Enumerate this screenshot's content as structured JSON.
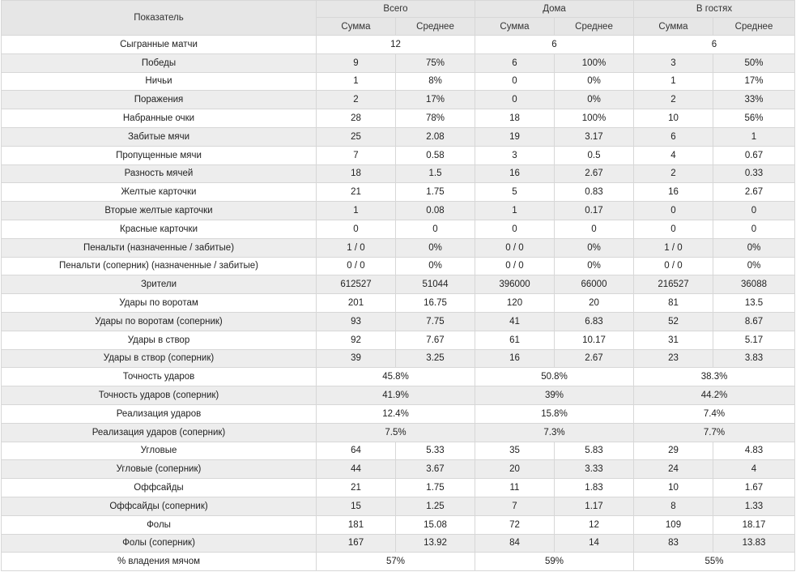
{
  "header": {
    "indicator": "Показатель",
    "groups": [
      "Всего",
      "Дома",
      "В гостях"
    ],
    "sum": "Сумма",
    "avg": "Среднее"
  },
  "rows": [
    {
      "label": "Сыгранные матчи",
      "merged": true,
      "values": [
        "12",
        "6",
        "6"
      ]
    },
    {
      "label": "Победы",
      "values": [
        "9",
        "75%",
        "6",
        "100%",
        "3",
        "50%"
      ]
    },
    {
      "label": "Ничьи",
      "values": [
        "1",
        "8%",
        "0",
        "0%",
        "1",
        "17%"
      ]
    },
    {
      "label": "Поражения",
      "values": [
        "2",
        "17%",
        "0",
        "0%",
        "2",
        "33%"
      ]
    },
    {
      "label": "Набранные очки",
      "values": [
        "28",
        "78%",
        "18",
        "100%",
        "10",
        "56%"
      ]
    },
    {
      "label": "Забитые мячи",
      "values": [
        "25",
        "2.08",
        "19",
        "3.17",
        "6",
        "1"
      ]
    },
    {
      "label": "Пропущенные мячи",
      "values": [
        "7",
        "0.58",
        "3",
        "0.5",
        "4",
        "0.67"
      ]
    },
    {
      "label": "Разность мячей",
      "values": [
        "18",
        "1.5",
        "16",
        "2.67",
        "2",
        "0.33"
      ]
    },
    {
      "label": "Желтые карточки",
      "values": [
        "21",
        "1.75",
        "5",
        "0.83",
        "16",
        "2.67"
      ]
    },
    {
      "label": "Вторые желтые карточки",
      "values": [
        "1",
        "0.08",
        "1",
        "0.17",
        "0",
        "0"
      ]
    },
    {
      "label": "Красные карточки",
      "values": [
        "0",
        "0",
        "0",
        "0",
        "0",
        "0"
      ]
    },
    {
      "label": "Пенальти (назначенные / забитые)",
      "values": [
        "1 / 0",
        "0%",
        "0 / 0",
        "0%",
        "1 / 0",
        "0%"
      ]
    },
    {
      "label": "Пенальти (соперник) (назначенные / забитые)",
      "values": [
        "0 / 0",
        "0%",
        "0 / 0",
        "0%",
        "0 / 0",
        "0%"
      ]
    },
    {
      "label": "Зрители",
      "values": [
        "612527",
        "51044",
        "396000",
        "66000",
        "216527",
        "36088"
      ]
    },
    {
      "label": "Удары по воротам",
      "values": [
        "201",
        "16.75",
        "120",
        "20",
        "81",
        "13.5"
      ]
    },
    {
      "label": "Удары по воротам (соперник)",
      "values": [
        "93",
        "7.75",
        "41",
        "6.83",
        "52",
        "8.67"
      ]
    },
    {
      "label": "Удары в створ",
      "values": [
        "92",
        "7.67",
        "61",
        "10.17",
        "31",
        "5.17"
      ]
    },
    {
      "label": "Удары в створ (соперник)",
      "values": [
        "39",
        "3.25",
        "16",
        "2.67",
        "23",
        "3.83"
      ]
    },
    {
      "label": "Точность ударов",
      "merged": true,
      "values": [
        "45.8%",
        "50.8%",
        "38.3%"
      ]
    },
    {
      "label": "Точность ударов (соперник)",
      "merged": true,
      "values": [
        "41.9%",
        "39%",
        "44.2%"
      ]
    },
    {
      "label": "Реализация ударов",
      "merged": true,
      "values": [
        "12.4%",
        "15.8%",
        "7.4%"
      ]
    },
    {
      "label": "Реализация ударов (соперник)",
      "merged": true,
      "values": [
        "7.5%",
        "7.3%",
        "7.7%"
      ]
    },
    {
      "label": "Угловые",
      "values": [
        "64",
        "5.33",
        "35",
        "5.83",
        "29",
        "4.83"
      ]
    },
    {
      "label": "Угловые (соперник)",
      "values": [
        "44",
        "3.67",
        "20",
        "3.33",
        "24",
        "4"
      ]
    },
    {
      "label": "Оффсайды",
      "values": [
        "21",
        "1.75",
        "11",
        "1.83",
        "10",
        "1.67"
      ]
    },
    {
      "label": "Оффсайды (соперник)",
      "values": [
        "15",
        "1.25",
        "7",
        "1.17",
        "8",
        "1.33"
      ]
    },
    {
      "label": "Фолы",
      "values": [
        "181",
        "15.08",
        "72",
        "12",
        "109",
        "18.17"
      ]
    },
    {
      "label": "Фолы (соперник)",
      "values": [
        "167",
        "13.92",
        "84",
        "14",
        "83",
        "13.83"
      ]
    },
    {
      "label": "% владения мячом",
      "merged": true,
      "values": [
        "57%",
        "59%",
        "55%"
      ]
    }
  ]
}
